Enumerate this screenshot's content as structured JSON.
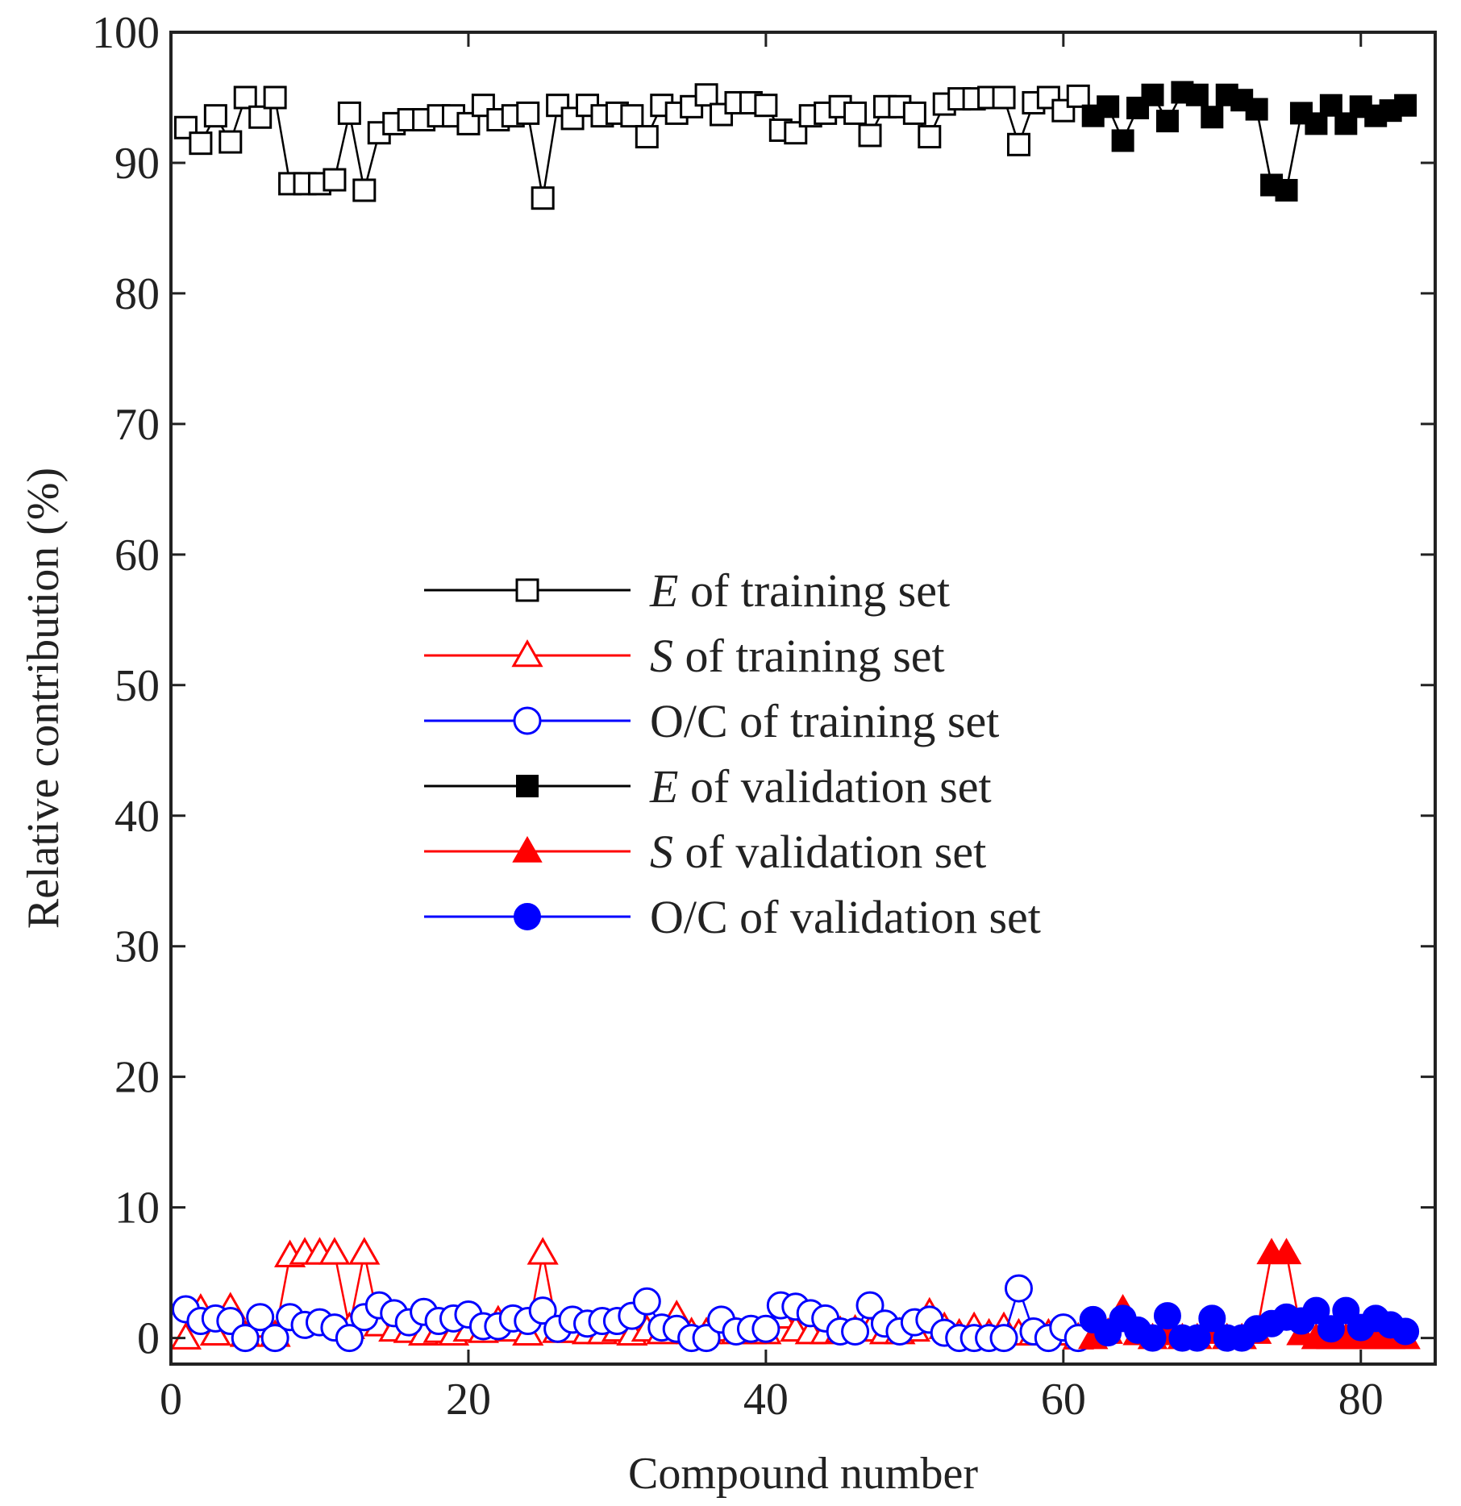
{
  "chart_data": {
    "type": "line",
    "title": "",
    "xlabel": "Compound number",
    "ylabel": "Relative contribution (%)",
    "xlim": [
      0,
      85
    ],
    "ylim": [
      -2,
      100
    ],
    "xticks": [
      0,
      20,
      40,
      60,
      80
    ],
    "xtick_labels": [
      "0",
      "20",
      "40",
      "60",
      "80"
    ],
    "yticks": [
      0,
      10,
      20,
      30,
      40,
      50,
      60,
      70,
      80,
      90,
      100
    ],
    "ytick_labels": [
      "0",
      "10",
      "20",
      "30",
      "40",
      "50",
      "60",
      "70",
      "80",
      "90",
      "100"
    ],
    "grid": false,
    "legend_position": "center",
    "series": [
      {
        "key": "e-train",
        "symbol": "E",
        "label_rest": " of training set",
        "name": "E of training set",
        "color": "#000000",
        "marker": "square",
        "filled": false,
        "x": [
          1,
          2,
          3,
          4,
          5,
          6,
          7,
          8,
          9,
          10,
          11,
          12,
          13,
          14,
          15,
          16,
          17,
          18,
          19,
          20,
          21,
          22,
          23,
          24,
          25,
          26,
          27,
          28,
          29,
          30,
          31,
          32,
          33,
          34,
          35,
          36,
          37,
          38,
          39,
          40,
          41,
          42,
          43,
          44,
          45,
          46,
          47,
          48,
          49,
          50,
          51,
          52,
          53,
          54,
          55,
          56,
          57,
          58,
          59,
          60,
          61
        ],
        "values": [
          92.7,
          91.5,
          93.6,
          91.6,
          95.0,
          93.5,
          95.0,
          88.4,
          88.4,
          88.4,
          88.7,
          93.8,
          87.9,
          92.3,
          93.0,
          93.3,
          93.3,
          93.6,
          93.6,
          93.0,
          94.4,
          93.3,
          93.6,
          93.8,
          87.3,
          94.4,
          93.4,
          94.4,
          93.6,
          93.8,
          93.6,
          92.0,
          94.4,
          93.8,
          94.3,
          95.2,
          93.7,
          94.6,
          94.6,
          94.4,
          92.5,
          92.3,
          93.6,
          93.8,
          94.3,
          93.8,
          92.1,
          94.3,
          94.3,
          93.8,
          92.0,
          94.5,
          94.9,
          94.9,
          95.0,
          95.0,
          91.4,
          94.6,
          95.0,
          94.0,
          95.1
        ]
      },
      {
        "key": "s-train",
        "symbol": "S",
        "label_rest": " of training set",
        "name": "S of training set",
        "color": "#ff0000",
        "marker": "triangle",
        "filled": false,
        "x": [
          1,
          2,
          3,
          4,
          5,
          6,
          7,
          8,
          9,
          10,
          11,
          12,
          13,
          14,
          15,
          16,
          17,
          18,
          19,
          20,
          21,
          22,
          23,
          24,
          25,
          26,
          27,
          28,
          29,
          30,
          31,
          32,
          33,
          34,
          35,
          36,
          37,
          38,
          39,
          40,
          41,
          42,
          43,
          44,
          45,
          46,
          47,
          48,
          49,
          50,
          51,
          52,
          53,
          54,
          55,
          56,
          57,
          58,
          59,
          60,
          61
        ],
        "values": [
          0.0,
          2.2,
          0.3,
          2.3,
          0.2,
          0.9,
          0.2,
          6.3,
          6.5,
          6.5,
          6.5,
          0.8,
          6.5,
          1.0,
          0.6,
          0.5,
          0.3,
          0.5,
          0.3,
          0.6,
          0.5,
          1.3,
          0.6,
          0.3,
          6.5,
          0.5,
          0.5,
          0.4,
          0.4,
          0.6,
          0.3,
          0.6,
          0.4,
          1.7,
          0.4,
          0.4,
          0.6,
          0.4,
          0.4,
          0.4,
          1.6,
          0.6,
          0.4,
          0.4,
          0.5,
          0.6,
          0.6,
          0.4,
          0.4,
          0.6,
          1.9,
          0.8,
          0.3,
          0.8,
          0.3,
          0.8,
          0.3,
          0.3,
          0.3,
          0.3,
          0.0
        ]
      },
      {
        "key": "oc-train",
        "symbol": "",
        "label_rest": "O/C of training set",
        "name": "O/C of training set",
        "color": "#0000ff",
        "marker": "circle",
        "filled": false,
        "x": [
          1,
          2,
          3,
          4,
          5,
          6,
          7,
          8,
          9,
          10,
          11,
          12,
          13,
          14,
          15,
          16,
          17,
          18,
          19,
          20,
          21,
          22,
          23,
          24,
          25,
          26,
          27,
          28,
          29,
          30,
          31,
          32,
          33,
          34,
          35,
          36,
          37,
          38,
          39,
          40,
          41,
          42,
          43,
          44,
          45,
          46,
          47,
          48,
          49,
          50,
          51,
          52,
          53,
          54,
          55,
          56,
          57,
          58,
          59,
          60,
          61
        ],
        "values": [
          2.2,
          1.3,
          1.5,
          1.3,
          0.0,
          1.6,
          0.0,
          1.6,
          1.0,
          1.2,
          0.8,
          0.0,
          1.6,
          2.5,
          1.9,
          1.2,
          2.0,
          1.3,
          1.5,
          1.8,
          0.9,
          0.9,
          1.5,
          1.3,
          2.1,
          0.7,
          1.4,
          1.1,
          1.3,
          1.3,
          1.7,
          2.8,
          0.8,
          0.7,
          0.0,
          0.0,
          1.4,
          0.5,
          0.7,
          0.7,
          2.5,
          2.4,
          1.9,
          1.5,
          0.5,
          0.5,
          2.5,
          1.1,
          0.5,
          1.2,
          1.4,
          0.4,
          0.0,
          0.0,
          0.0,
          0.0,
          3.8,
          0.5,
          0.0,
          0.8,
          0.0
        ]
      },
      {
        "key": "e-val",
        "symbol": "E",
        "label_rest": " of validation set",
        "name": "E of validation set",
        "color": "#000000",
        "marker": "square",
        "filled": true,
        "x": [
          62,
          63,
          64,
          65,
          66,
          67,
          68,
          69,
          70,
          71,
          72,
          73,
          74,
          75,
          76,
          77,
          78,
          79,
          80,
          81,
          82,
          83
        ],
        "values": [
          93.6,
          94.3,
          91.7,
          94.2,
          95.2,
          93.2,
          95.4,
          95.2,
          93.5,
          95.2,
          94.8,
          94.1,
          88.3,
          87.9,
          93.8,
          93.0,
          94.4,
          93.0,
          94.3,
          93.6,
          94.0,
          94.4
        ]
      },
      {
        "key": "s-val",
        "symbol": "S",
        "label_rest": " of validation set",
        "name": "S of validation set",
        "color": "#ff0000",
        "marker": "triangle",
        "filled": true,
        "x": [
          62,
          63,
          64,
          65,
          66,
          67,
          68,
          69,
          70,
          71,
          72,
          73,
          74,
          75,
          76,
          77,
          78,
          79,
          80,
          81,
          82,
          83
        ],
        "values": [
          0.0,
          0.4,
          2.2,
          0.3,
          0.0,
          0.3,
          0.0,
          0.0,
          0.4,
          0.0,
          0.0,
          0.4,
          6.5,
          6.5,
          0.3,
          0.0,
          0.0,
          0.0,
          0.0,
          0.0,
          0.0,
          0.0
        ]
      },
      {
        "key": "oc-val",
        "symbol": "",
        "label_rest": "O/C of validation set",
        "name": "O/C of validation set",
        "color": "#0000ff",
        "marker": "circle",
        "filled": true,
        "x": [
          62,
          63,
          64,
          65,
          66,
          67,
          68,
          69,
          70,
          71,
          72,
          73,
          74,
          75,
          76,
          77,
          78,
          79,
          80,
          81,
          82,
          83
        ],
        "values": [
          1.4,
          0.4,
          1.5,
          0.6,
          0.0,
          1.7,
          0.0,
          0.0,
          1.5,
          0.0,
          0.0,
          0.7,
          1.1,
          1.6,
          1.3,
          2.1,
          0.7,
          2.1,
          0.8,
          1.5,
          1.0,
          0.5
        ]
      }
    ]
  }
}
